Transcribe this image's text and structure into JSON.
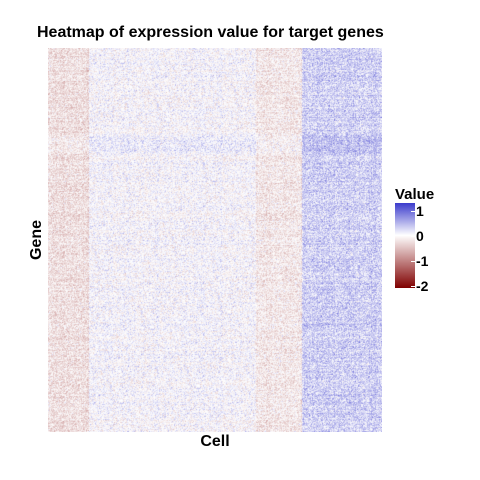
{
  "chart_data": {
    "type": "heatmap",
    "title": "Heatmap of expression value for target genes",
    "xlabel": "Cell",
    "ylabel": "Gene",
    "legend": {
      "title": "Value",
      "ticks": [
        1,
        0,
        -1,
        -2
      ],
      "tick_labels": [
        "1",
        "0",
        "-1",
        "-2"
      ],
      "position": "right"
    },
    "value_range": [
      -2.1,
      1.3
    ],
    "color_scale": {
      "low": "#7f0000",
      "mid": "#ffffff",
      "high": "#3b3bcc"
    },
    "grid": false,
    "column_groups": [
      {
        "cells": "first ~12%",
        "mean": -0.35
      },
      {
        "cells": "12%-62%",
        "mean": 0.02
      },
      {
        "cells": "62%-76%",
        "mean": -0.25
      },
      {
        "cells": "last ~24%",
        "mean": 0.35
      }
    ]
  }
}
